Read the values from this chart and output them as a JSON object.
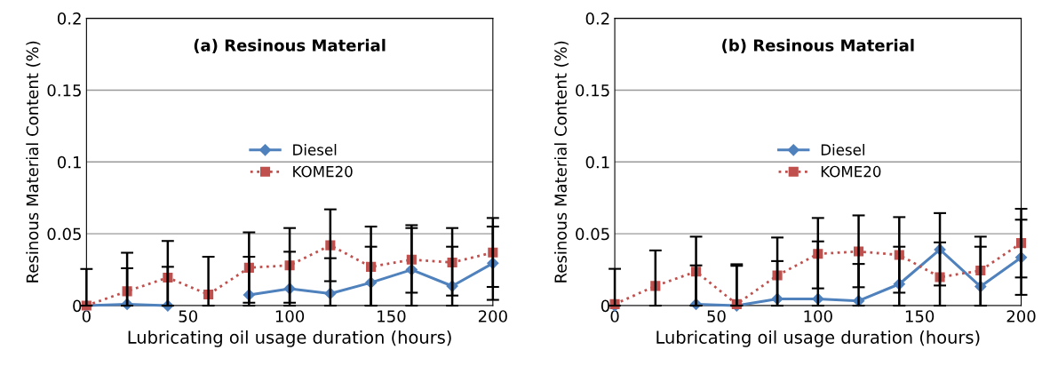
{
  "chart_data": [
    {
      "type": "line",
      "title": "(a) Resinous Material",
      "xlabel": "Lubricating oil usage duration (hours)",
      "ylabel": "Resinous Material Content (%)",
      "x": [
        0,
        20,
        40,
        60,
        80,
        100,
        120,
        140,
        160,
        180,
        200
      ],
      "series": [
        {
          "name": "Diesel",
          "color": "#4f81bd",
          "marker": "diamond",
          "line_style": "solid",
          "values": [
            0,
            0.001,
            0,
            null,
            0.0075,
            0.0118,
            0.0084,
            0.016,
            0.025,
            0.0136,
            0.0295
          ],
          "errors": [
            [
              0,
              0.0255
            ],
            [
              0,
              0.026
            ],
            [
              0,
              0.027
            ],
            null,
            [
              0,
              0.034
            ],
            [
              0,
              0.0375
            ],
            [
              0,
              0.033
            ],
            [
              0,
              0.041
            ],
            [
              0,
              0.054
            ],
            [
              0,
              0.041
            ],
            [
              0.004,
              0.055
            ]
          ]
        },
        {
          "name": "KOME20",
          "color": "#c0504d",
          "marker": "square",
          "line_style": "dotted",
          "values": [
            0,
            0.01,
            0.0195,
            0.0077,
            0.0264,
            0.028,
            0.042,
            0.027,
            0.032,
            0.03,
            0.037
          ],
          "errors": [
            null,
            [
              0,
              0.0368
            ],
            [
              0,
              0.045
            ],
            [
              0,
              0.034
            ],
            [
              0.002,
              0.051
            ],
            [
              0.002,
              0.054
            ],
            [
              0.017,
              0.067
            ],
            [
              0,
              0.055
            ],
            [
              0.009,
              0.056
            ],
            [
              0.007,
              0.054
            ],
            [
              0.013,
              0.061
            ]
          ]
        }
      ],
      "xlim": [
        0,
        200
      ],
      "xticks": [
        0,
        50,
        100,
        150,
        200
      ],
      "ylim": [
        0,
        0.2
      ],
      "yticks": [
        0,
        0.05,
        0.1,
        0.15,
        0.2
      ],
      "grid": "y",
      "legend": "center"
    },
    {
      "type": "line",
      "title": "(b) Resinous Material",
      "xlabel": "Lubricating oil usage duration (hours)",
      "ylabel": "Resinous Material Content (%)",
      "x": [
        0,
        20,
        40,
        60,
        80,
        100,
        120,
        140,
        160,
        180,
        200
      ],
      "series": [
        {
          "name": "Diesel",
          "color": "#4f81bd",
          "marker": "diamond",
          "line_style": "solid",
          "values": [
            0,
            null,
            0.001,
            0,
            0.0047,
            0.0047,
            0.0033,
            0.015,
            0.039,
            0.0133,
            0.0335
          ],
          "errors": [
            [
              0,
              0.0256
            ],
            null,
            [
              0,
              0.028
            ],
            [
              0,
              0.0277
            ],
            [
              0,
              0.031
            ],
            [
              0,
              0.0447
            ],
            [
              0,
              0.029
            ],
            [
              0,
              0.041
            ],
            [
              0.014,
              0.0644
            ],
            [
              0,
              0.041
            ],
            [
              0.0075,
              0.0598
            ]
          ]
        },
        {
          "name": "KOME20",
          "color": "#c0504d",
          "marker": "square",
          "line_style": "dotted",
          "values": [
            0.001,
            0.0137,
            0.0237,
            0.001,
            0.021,
            0.036,
            0.0377,
            0.0353,
            0.0198,
            0.0244,
            0.0435
          ],
          "errors": [
            null,
            [
              0,
              0.0384
            ],
            [
              0,
              0.048
            ],
            [
              0,
              0.0288
            ],
            [
              0,
              0.0474
            ],
            [
              0.012,
              0.061
            ],
            [
              0.0128,
              0.0628
            ],
            [
              0.009,
              0.0616
            ],
            [
              0,
              0.044
            ],
            [
              0,
              0.048
            ],
            [
              0.0196,
              0.0674
            ]
          ]
        }
      ],
      "xlim": [
        0,
        200
      ],
      "xticks": [
        0,
        50,
        100,
        150,
        200
      ],
      "ylim": [
        0,
        0.2
      ],
      "yticks": [
        0,
        0.05,
        0.1,
        0.15,
        0.2
      ],
      "grid": "y",
      "legend": "center"
    }
  ]
}
